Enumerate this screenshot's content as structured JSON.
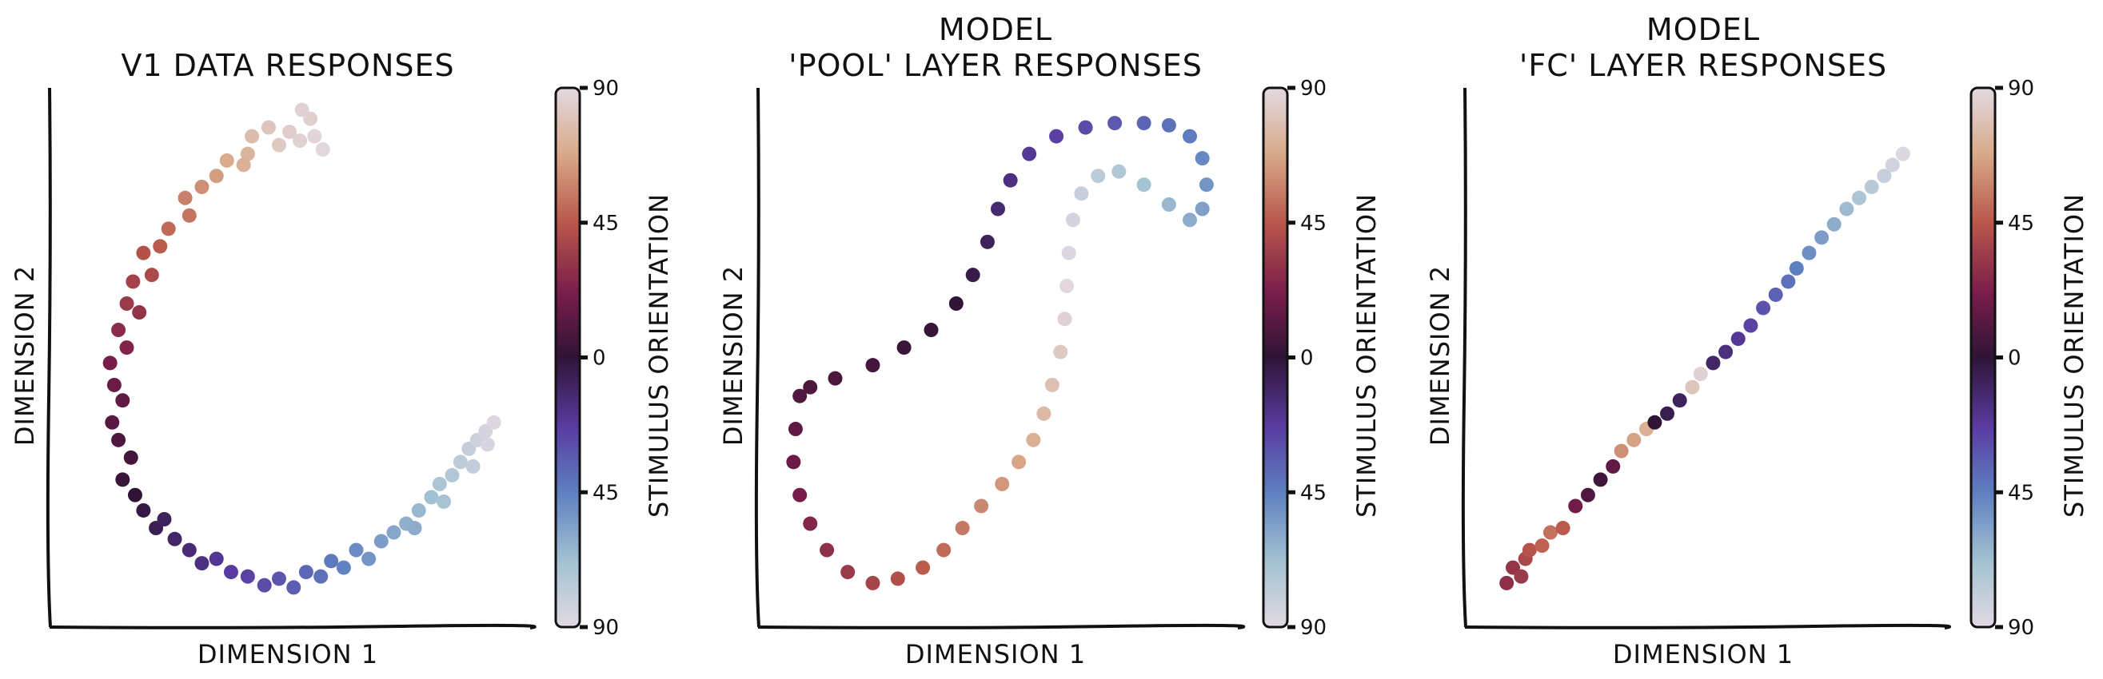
{
  "chart_data": [
    {
      "type": "scatter",
      "title": [
        "V1 DATA RESPONSES"
      ],
      "xlabel": "DIMENSION 1",
      "ylabel": "DIMENSION 2",
      "shape": "C-shaped arc",
      "points": [
        [
          -0.2,
          1.0,
          72
        ],
        [
          -0.18,
          1.08,
          76
        ],
        [
          -0.22,
          0.95,
          70
        ],
        [
          -0.1,
          1.12,
          80
        ],
        [
          -0.05,
          1.04,
          82
        ],
        [
          0.0,
          1.1,
          84
        ],
        [
          0.05,
          1.06,
          86
        ],
        [
          0.1,
          1.16,
          85
        ],
        [
          0.12,
          1.08,
          88
        ],
        [
          0.16,
          1.02,
          89
        ],
        [
          0.06,
          1.2,
          86
        ],
        [
          -0.3,
          0.97,
          68
        ],
        [
          -0.35,
          0.9,
          64
        ],
        [
          -0.42,
          0.85,
          60
        ],
        [
          -0.5,
          0.8,
          56
        ],
        [
          -0.48,
          0.72,
          53
        ],
        [
          -0.58,
          0.66,
          50
        ],
        [
          -0.62,
          0.58,
          46
        ],
        [
          -0.7,
          0.55,
          43
        ],
        [
          -0.66,
          0.45,
          40
        ],
        [
          -0.75,
          0.42,
          37
        ],
        [
          -0.78,
          0.32,
          34
        ],
        [
          -0.72,
          0.28,
          31
        ],
        [
          -0.82,
          0.2,
          28
        ],
        [
          -0.78,
          0.12,
          25
        ],
        [
          -0.86,
          0.05,
          22
        ],
        [
          -0.84,
          -0.05,
          18
        ],
        [
          -0.8,
          -0.12,
          15
        ],
        [
          -0.85,
          -0.22,
          12
        ],
        [
          -0.82,
          -0.3,
          9
        ],
        [
          -0.76,
          -0.38,
          6
        ],
        [
          -0.8,
          -0.48,
          3
        ],
        [
          -0.74,
          -0.55,
          0
        ],
        [
          -0.7,
          -0.62,
          -3
        ],
        [
          -0.64,
          -0.7,
          -6
        ],
        [
          -0.6,
          -0.66,
          -8
        ],
        [
          -0.55,
          -0.75,
          -10
        ],
        [
          -0.48,
          -0.8,
          -13
        ],
        [
          -0.42,
          -0.86,
          -16
        ],
        [
          -0.35,
          -0.84,
          -19
        ],
        [
          -0.28,
          -0.9,
          -22
        ],
        [
          -0.2,
          -0.92,
          -25
        ],
        [
          -0.12,
          -0.96,
          -28
        ],
        [
          -0.05,
          -0.93,
          -31
        ],
        [
          0.02,
          -0.97,
          -34
        ],
        [
          0.08,
          -0.9,
          -37
        ],
        [
          0.15,
          -0.92,
          -40
        ],
        [
          0.2,
          -0.85,
          -43
        ],
        [
          0.26,
          -0.88,
          -46
        ],
        [
          0.32,
          -0.8,
          -49
        ],
        [
          0.38,
          -0.84,
          -52
        ],
        [
          0.44,
          -0.76,
          -55
        ],
        [
          0.5,
          -0.72,
          -58
        ],
        [
          0.56,
          -0.68,
          -61
        ],
        [
          0.62,
          -0.62,
          -64
        ],
        [
          0.68,
          -0.56,
          -67
        ],
        [
          0.72,
          -0.5,
          -70
        ],
        [
          0.78,
          -0.46,
          -73
        ],
        [
          0.82,
          -0.4,
          -76
        ],
        [
          0.86,
          -0.34,
          -79
        ],
        [
          0.9,
          -0.3,
          -82
        ],
        [
          0.94,
          -0.26,
          -85
        ],
        [
          0.98,
          -0.22,
          -88
        ],
        [
          0.95,
          -0.32,
          -86
        ],
        [
          0.88,
          -0.42,
          -78
        ],
        [
          0.74,
          -0.58,
          -69
        ],
        [
          0.6,
          -0.7,
          -60
        ]
      ],
      "colorbar": {
        "label": "STIMULUS ORIENTATION",
        "ticks": [
          "90",
          "45",
          "0",
          "45",
          "90"
        ],
        "range": [
          -90,
          90
        ]
      }
    },
    {
      "type": "scatter",
      "title": [
        "MODEL",
        "'POOL' LAYER RESPONSES"
      ],
      "xlabel": "DIMENSION 1",
      "ylabel": "DIMENSION 2",
      "shape": "looping curve",
      "points": [
        [
          -0.95,
          -0.1,
          10
        ],
        [
          -0.97,
          -0.25,
          14
        ],
        [
          -0.98,
          -0.4,
          18
        ],
        [
          -0.95,
          -0.55,
          22
        ],
        [
          -0.9,
          -0.68,
          26
        ],
        [
          -0.82,
          -0.8,
          30
        ],
        [
          -0.72,
          -0.9,
          34
        ],
        [
          -0.6,
          -0.95,
          38
        ],
        [
          -0.48,
          -0.93,
          42
        ],
        [
          -0.36,
          -0.88,
          46
        ],
        [
          -0.26,
          -0.8,
          50
        ],
        [
          -0.17,
          -0.7,
          54
        ],
        [
          -0.08,
          -0.6,
          58
        ],
        [
          0.02,
          -0.5,
          62
        ],
        [
          0.1,
          -0.4,
          66
        ],
        [
          0.17,
          -0.3,
          70
        ],
        [
          0.22,
          -0.18,
          74
        ],
        [
          0.26,
          -0.05,
          78
        ],
        [
          0.3,
          0.1,
          82
        ],
        [
          0.32,
          0.25,
          86
        ],
        [
          0.33,
          0.4,
          89
        ],
        [
          0.34,
          0.55,
          -88
        ],
        [
          0.36,
          0.7,
          -84
        ],
        [
          0.4,
          0.82,
          -80
        ],
        [
          0.48,
          0.9,
          -76
        ],
        [
          0.58,
          0.92,
          -72
        ],
        [
          0.7,
          0.86,
          -68
        ],
        [
          0.82,
          0.77,
          -64
        ],
        [
          0.92,
          0.7,
          -60
        ],
        [
          0.98,
          0.75,
          -56
        ],
        [
          1.0,
          0.86,
          -52
        ],
        [
          0.98,
          0.98,
          -48
        ],
        [
          0.92,
          1.08,
          -44
        ],
        [
          0.82,
          1.13,
          -40
        ],
        [
          0.7,
          1.14,
          -36
        ],
        [
          0.56,
          1.14,
          -32
        ],
        [
          0.42,
          1.12,
          -28
        ],
        [
          0.28,
          1.08,
          -24
        ],
        [
          0.15,
          1.0,
          -20
        ],
        [
          0.06,
          0.88,
          -16
        ],
        [
          0.0,
          0.75,
          -12
        ],
        [
          -0.05,
          0.6,
          -8
        ],
        [
          -0.12,
          0.45,
          -4
        ],
        [
          -0.2,
          0.32,
          0
        ],
        [
          -0.32,
          0.2,
          2
        ],
        [
          -0.45,
          0.12,
          4
        ],
        [
          -0.6,
          0.04,
          6
        ],
        [
          -0.78,
          -0.02,
          8
        ],
        [
          -0.9,
          -0.06,
          9
        ]
      ],
      "colorbar": {
        "label": "STIMULUS ORIENTATION",
        "ticks": [
          "90",
          "45",
          "0",
          "45",
          "90"
        ],
        "range": [
          -90,
          90
        ]
      }
    },
    {
      "type": "scatter",
      "title": [
        "MODEL",
        "'FC' LAYER RESPONSES"
      ],
      "xlabel": "DIMENSION 1",
      "ylabel": "DIMENSION 2",
      "shape": "diagonal band",
      "points": [
        [
          -0.95,
          -0.95,
          30
        ],
        [
          -0.92,
          -0.88,
          32
        ],
        [
          -0.88,
          -0.92,
          34
        ],
        [
          -0.86,
          -0.84,
          40
        ],
        [
          -0.84,
          -0.8,
          44
        ],
        [
          -0.78,
          -0.78,
          48
        ],
        [
          -0.74,
          -0.72,
          52
        ],
        [
          -0.68,
          -0.7,
          46
        ],
        [
          -0.62,
          -0.6,
          20
        ],
        [
          -0.56,
          -0.55,
          10
        ],
        [
          -0.5,
          -0.48,
          5
        ],
        [
          -0.44,
          -0.42,
          15
        ],
        [
          -0.4,
          -0.35,
          60
        ],
        [
          -0.34,
          -0.3,
          65
        ],
        [
          -0.28,
          -0.25,
          70
        ],
        [
          -0.24,
          -0.22,
          0
        ],
        [
          -0.18,
          -0.18,
          -5
        ],
        [
          -0.12,
          -0.12,
          -8
        ],
        [
          -0.06,
          -0.06,
          80
        ],
        [
          -0.02,
          0.0,
          86
        ],
        [
          0.04,
          0.05,
          -10
        ],
        [
          0.1,
          0.1,
          -15
        ],
        [
          0.16,
          0.16,
          -20
        ],
        [
          0.22,
          0.22,
          -25
        ],
        [
          0.28,
          0.3,
          -30
        ],
        [
          0.34,
          0.36,
          -35
        ],
        [
          0.4,
          0.42,
          -40
        ],
        [
          0.44,
          0.48,
          -45
        ],
        [
          0.5,
          0.55,
          -50
        ],
        [
          0.56,
          0.62,
          -55
        ],
        [
          0.62,
          0.68,
          -60
        ],
        [
          0.68,
          0.75,
          -65
        ],
        [
          0.74,
          0.8,
          -70
        ],
        [
          0.8,
          0.85,
          -75
        ],
        [
          0.86,
          0.9,
          -80
        ],
        [
          0.9,
          0.95,
          -84
        ],
        [
          0.95,
          1.0,
          -88
        ]
      ],
      "colorbar": {
        "label": "STIMULUS ORIENTATION",
        "ticks": [
          "90",
          "45",
          "0",
          "45",
          "90"
        ],
        "range": [
          -90,
          90
        ]
      }
    }
  ]
}
